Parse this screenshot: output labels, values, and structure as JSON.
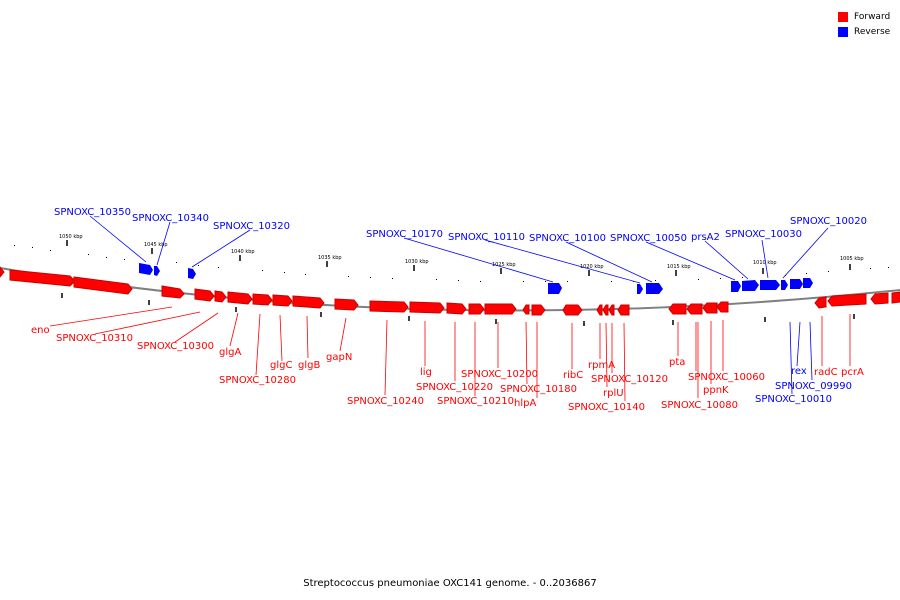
{
  "legend": {
    "items": [
      {
        "label": "Forward",
        "color": "#ff0000"
      },
      {
        "label": "Reverse",
        "color": "#0000ff"
      }
    ]
  },
  "caption": "Streptococcus pneumoniae OXC141 genome. - 0..2036867",
  "colors": {
    "forward": "#ff0000",
    "reverse": "#0000ff",
    "backbone": "#808080"
  },
  "kbp_ticks": [
    "1050 kbp",
    "1045 kbp",
    "1040 kbp",
    "1035 kbp",
    "1030 kbp",
    "1025 kbp",
    "1020 kbp",
    "1015 kbp",
    "1010 kbp",
    "1005 kbp"
  ],
  "forward_labels": [
    "eno",
    "SPNOXC_10310",
    "SPNOXC_10300",
    "glgA",
    "SPNOXC_10280",
    "glgC",
    "glgB",
    "gapN",
    "SPNOXC_10240",
    "lig",
    "SPNOXC_10220",
    "SPNOXC_10210",
    "SPNOXC_10200",
    "SPNOXC_10180",
    "hlpA",
    "ribC",
    "rpmA",
    "rplU",
    "SPNOXC_10120",
    "SPNOXC_10140",
    "pta",
    "SPNOXC_10060",
    "ppnK",
    "SPNOXC_10080",
    "radC",
    "pcrA"
  ],
  "reverse_labels": [
    "SPNOXC_10350",
    "SPNOXC_10340",
    "SPNOXC_10320",
    "SPNOXC_10170",
    "SPNOXC_10110",
    "SPNOXC_10100",
    "SPNOXC_10050",
    "prsA2",
    "SPNOXC_10030",
    "SPNOXC_10020",
    "rex",
    "SPNOXC_09990",
    "SPNOXC_10010"
  ]
}
